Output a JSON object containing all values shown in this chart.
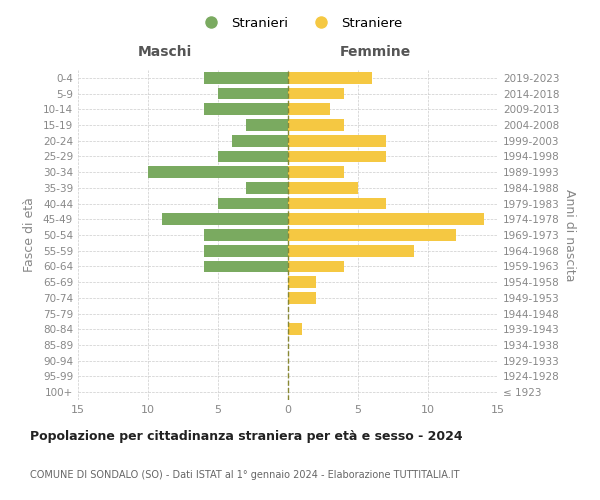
{
  "age_groups": [
    "100+",
    "95-99",
    "90-94",
    "85-89",
    "80-84",
    "75-79",
    "70-74",
    "65-69",
    "60-64",
    "55-59",
    "50-54",
    "45-49",
    "40-44",
    "35-39",
    "30-34",
    "25-29",
    "20-24",
    "15-19",
    "10-14",
    "5-9",
    "0-4"
  ],
  "birth_years": [
    "≤ 1923",
    "1924-1928",
    "1929-1933",
    "1934-1938",
    "1939-1943",
    "1944-1948",
    "1949-1953",
    "1954-1958",
    "1959-1963",
    "1964-1968",
    "1969-1973",
    "1974-1978",
    "1979-1983",
    "1984-1988",
    "1989-1993",
    "1994-1998",
    "1999-2003",
    "2004-2008",
    "2009-2013",
    "2014-2018",
    "2019-2023"
  ],
  "maschi": [
    0,
    0,
    0,
    0,
    0,
    0,
    0,
    0,
    6,
    6,
    6,
    9,
    5,
    3,
    10,
    5,
    4,
    3,
    6,
    5,
    6
  ],
  "femmine": [
    0,
    0,
    0,
    0,
    1,
    0,
    2,
    2,
    4,
    9,
    12,
    14,
    7,
    5,
    4,
    7,
    7,
    4,
    3,
    4,
    6
  ],
  "maschi_color": "#7aaa60",
  "femmine_color": "#f5c842",
  "background_color": "#ffffff",
  "grid_color": "#cccccc",
  "title": "Popolazione per cittadinanza straniera per età e sesso - 2024",
  "subtitle": "COMUNE DI SONDALO (SO) - Dati ISTAT al 1° gennaio 2024 - Elaborazione TUTTITALIA.IT",
  "xlabel_left": "Maschi",
  "xlabel_right": "Femmine",
  "ylabel_left": "Fasce di età",
  "ylabel_right": "Anni di nascita",
  "legend_maschi": "Stranieri",
  "legend_femmine": "Straniere",
  "xlim": 15
}
